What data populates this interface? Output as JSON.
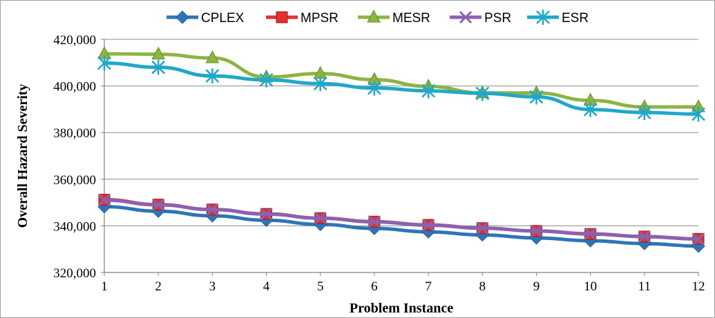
{
  "chart_data": {
    "type": "line",
    "title": "",
    "xlabel": "Problem Instance",
    "ylabel": "Overall Hazard Severity",
    "x": [
      1,
      2,
      3,
      4,
      5,
      6,
      7,
      8,
      9,
      10,
      11,
      12
    ],
    "x_tick_labels": [
      "1",
      "2",
      "3",
      "4",
      "5",
      "6",
      "7",
      "8",
      "9",
      "10",
      "11",
      "12"
    ],
    "ylim": [
      320000,
      420000
    ],
    "y_ticks": [
      320000,
      340000,
      360000,
      380000,
      400000,
      420000
    ],
    "y_tick_labels": [
      "320,000",
      "340,000",
      "360,000",
      "380,000",
      "400,000",
      "420,000"
    ],
    "grid": "horizontal major gridlines",
    "legend_position": "top",
    "series": [
      {
        "name": "CPLEX",
        "color": "#2E75B6",
        "marker": "diamond",
        "values": [
          348200,
          346300,
          344300,
          342400,
          340600,
          338900,
          337400,
          336100,
          334800,
          333600,
          332400,
          331300
        ]
      },
      {
        "name": "MPSR",
        "color": "#E03030",
        "marker": "square",
        "values": [
          351200,
          349100,
          347000,
          345100,
          343300,
          341800,
          340400,
          339000,
          337800,
          336500,
          335400,
          334400
        ]
      },
      {
        "name": "MESR",
        "color": "#8DB443",
        "marker": "triangle",
        "values": [
          413800,
          413600,
          412000,
          403800,
          405300,
          402700,
          399800,
          397000,
          397000,
          393800,
          391000,
          391000
        ]
      },
      {
        "name": "PSR",
        "color": "#8B62B0",
        "marker": "x",
        "values": [
          351000,
          349000,
          347000,
          345000,
          343300,
          341700,
          340300,
          339000,
          337800,
          336600,
          335400,
          334300
        ]
      },
      {
        "name": "ESR",
        "color": "#1FA8C9",
        "marker": "star",
        "values": [
          409800,
          408000,
          404300,
          402600,
          401000,
          399100,
          397900,
          396800,
          395300,
          389900,
          388600,
          387900
        ]
      }
    ]
  }
}
